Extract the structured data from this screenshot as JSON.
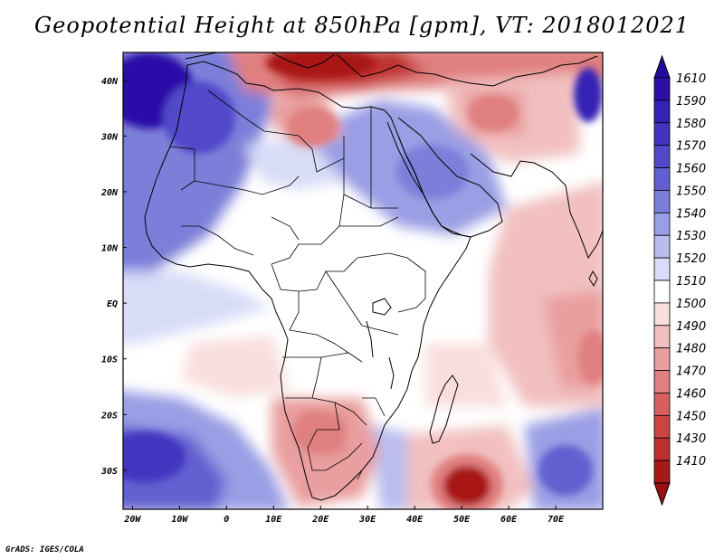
{
  "title": "Geopotential Height at 850hPa [gpm], VT: 2018012021",
  "footer": "GrADS: IGES/COLA",
  "map": {
    "lon_range": [
      -22,
      80
    ],
    "lat_range": [
      -37,
      45
    ],
    "lon_ticks": [
      {
        "value": -20,
        "label": "20W"
      },
      {
        "value": -10,
        "label": "10W"
      },
      {
        "value": 0,
        "label": "0"
      },
      {
        "value": 10,
        "label": "10E"
      },
      {
        "value": 20,
        "label": "20E"
      },
      {
        "value": 30,
        "label": "30E"
      },
      {
        "value": 40,
        "label": "40E"
      },
      {
        "value": 50,
        "label": "50E"
      },
      {
        "value": 60,
        "label": "60E"
      },
      {
        "value": 70,
        "label": "70E"
      }
    ],
    "lat_ticks": [
      {
        "value": 40,
        "label": "40N"
      },
      {
        "value": 30,
        "label": "30N"
      },
      {
        "value": 20,
        "label": "20N"
      },
      {
        "value": 10,
        "label": "10N"
      },
      {
        "value": 0,
        "label": "EQ"
      },
      {
        "value": -10,
        "label": "10S"
      },
      {
        "value": -20,
        "label": "20S"
      },
      {
        "value": -30,
        "label": "30S"
      }
    ],
    "features": [
      {
        "name": "high-northwest-atlantic",
        "lon": -18,
        "lat": 38,
        "rlon": 16,
        "rlat": 14,
        "value": 1605
      },
      {
        "name": "low-south-africa",
        "lon": 20,
        "lat": -22,
        "rlon": 7,
        "rlat": 8,
        "value": 1475
      },
      {
        "name": "low-madagascar-southeast",
        "lon": 50,
        "lat": -33,
        "rlon": 8,
        "rlat": 6,
        "value": 1418
      },
      {
        "name": "low-mediterranean",
        "lon": 25,
        "lat": 42,
        "rlon": 18,
        "rlat": 5,
        "value": 1460
      },
      {
        "name": "low-arabia",
        "lon": 51,
        "lat": 33,
        "rlon": 9,
        "rlat": 6,
        "value": 1480
      }
    ]
  },
  "colorbar": {
    "levels": [
      {
        "label": "1610",
        "color": "#2b0fa8"
      },
      {
        "label": "1590",
        "color": "#3521b5"
      },
      {
        "label": "1580",
        "color": "#4234c0"
      },
      {
        "label": "1570",
        "color": "#5148c9"
      },
      {
        "label": "1560",
        "color": "#6260d0"
      },
      {
        "label": "1550",
        "color": "#7c7fd9"
      },
      {
        "label": "1540",
        "color": "#9a9ee4"
      },
      {
        "label": "1530",
        "color": "#b9bdee"
      },
      {
        "label": "1520",
        "color": "#d8dcf7"
      },
      {
        "label": "1510",
        "color": "#ffffff"
      },
      {
        "label": "1500",
        "color": "#f9dede"
      },
      {
        "label": "1490",
        "color": "#f2c0c0"
      },
      {
        "label": "1480",
        "color": "#e99f9f"
      },
      {
        "label": "1470",
        "color": "#e07f7f"
      },
      {
        "label": "1460",
        "color": "#d66060"
      },
      {
        "label": "1450",
        "color": "#cc4444"
      },
      {
        "label": "1430",
        "color": "#c03030"
      },
      {
        "label": "1410",
        "color": "#a81818"
      }
    ],
    "top_color": "#240c9a",
    "bottom_color": "#9a1010"
  }
}
